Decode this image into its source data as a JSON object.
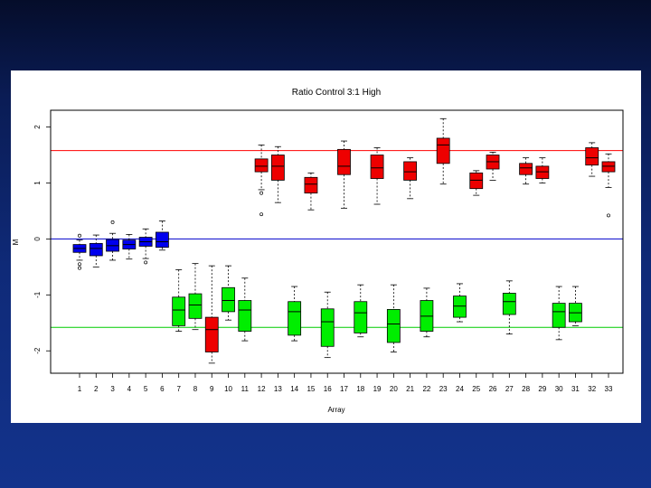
{
  "slide": {
    "background_top": "#050d2a",
    "background_bottom": "#13338c"
  },
  "chart_data": {
    "type": "boxplot",
    "title": "Ratio Control 3:1 High",
    "xlabel": "Array",
    "ylabel": "M",
    "ylim": [
      -2.4,
      2.3
    ],
    "yticks": [
      -2,
      -1,
      0,
      1,
      2
    ],
    "categories": [
      "1",
      "2",
      "3",
      "4",
      "5",
      "6",
      "7",
      "8",
      "9",
      "10",
      "11",
      "12",
      "13",
      "14",
      "15",
      "16",
      "17",
      "18",
      "19",
      "20",
      "21",
      "22",
      "23",
      "24",
      "25",
      "26",
      "27",
      "28",
      "29",
      "30",
      "31",
      "32",
      "33"
    ],
    "reference_lines": [
      {
        "y": 1.58,
        "color": "#ff0000"
      },
      {
        "y": 0,
        "color": "#0000cc"
      },
      {
        "y": -1.58,
        "color": "#00cc00"
      }
    ],
    "colors": {
      "blue": "#0000ee",
      "red": "#ee0000",
      "green": "#00ee00"
    },
    "boxes": [
      {
        "array": "1",
        "color": "blue",
        "low": -0.38,
        "q1": -0.24,
        "median": -0.17,
        "q3": -0.1,
        "high": -0.02,
        "outliers": [
          -0.45,
          -0.52,
          0.06
        ]
      },
      {
        "array": "2",
        "color": "blue",
        "low": -0.5,
        "q1": -0.3,
        "median": -0.17,
        "q3": -0.08,
        "high": 0.07,
        "outliers": []
      },
      {
        "array": "3",
        "color": "blue",
        "low": -0.38,
        "q1": -0.22,
        "median": -0.12,
        "q3": -0.01,
        "high": 0.1,
        "outliers": [
          0.3
        ]
      },
      {
        "array": "4",
        "color": "blue",
        "low": -0.36,
        "q1": -0.18,
        "median": -0.1,
        "q3": -0.02,
        "high": 0.08,
        "outliers": []
      },
      {
        "array": "5",
        "color": "blue",
        "low": -0.35,
        "q1": -0.13,
        "median": -0.05,
        "q3": 0.03,
        "high": 0.18,
        "outliers": [
          -0.42
        ]
      },
      {
        "array": "6",
        "color": "blue",
        "low": -0.2,
        "q1": -0.15,
        "median": -0.05,
        "q3": 0.12,
        "high": 0.32,
        "outliers": []
      },
      {
        "array": "7",
        "color": "green",
        "low": -1.65,
        "q1": -1.55,
        "median": -1.27,
        "q3": -1.04,
        "high": -0.55,
        "outliers": []
      },
      {
        "array": "8",
        "color": "green",
        "low": -1.62,
        "q1": -1.42,
        "median": -1.18,
        "q3": -0.98,
        "high": -0.44,
        "outliers": []
      },
      {
        "array": "9",
        "color": "red",
        "low": -2.22,
        "q1": -2.02,
        "median": -1.62,
        "q3": -1.4,
        "high": -0.48,
        "outliers": []
      },
      {
        "array": "10",
        "color": "green",
        "low": -1.45,
        "q1": -1.3,
        "median": -1.1,
        "q3": -0.87,
        "high": -0.48,
        "outliers": []
      },
      {
        "array": "11",
        "color": "green",
        "low": -1.82,
        "q1": -1.65,
        "median": -1.27,
        "q3": -1.1,
        "high": -0.7,
        "outliers": []
      },
      {
        "array": "12",
        "color": "red",
        "low": 0.88,
        "q1": 1.2,
        "median": 1.3,
        "q3": 1.43,
        "high": 1.68,
        "outliers": [
          0.82,
          0.44
        ]
      },
      {
        "array": "13",
        "color": "red",
        "low": 0.65,
        "q1": 1.05,
        "median": 1.3,
        "q3": 1.5,
        "high": 1.65,
        "outliers": []
      },
      {
        "array": "14",
        "color": "green",
        "low": -1.82,
        "q1": -1.72,
        "median": -1.3,
        "q3": -1.12,
        "high": -0.85,
        "outliers": []
      },
      {
        "array": "15",
        "color": "red",
        "low": 0.52,
        "q1": 0.82,
        "median": 0.98,
        "q3": 1.1,
        "high": 1.18,
        "outliers": []
      },
      {
        "array": "16",
        "color": "green",
        "low": -2.12,
        "q1": -1.92,
        "median": -1.48,
        "q3": -1.25,
        "high": -0.95,
        "outliers": []
      },
      {
        "array": "17",
        "color": "red",
        "low": 0.55,
        "q1": 1.15,
        "median": 1.3,
        "q3": 1.6,
        "high": 1.75,
        "outliers": []
      },
      {
        "array": "18",
        "color": "green",
        "low": -1.75,
        "q1": -1.68,
        "median": -1.32,
        "q3": -1.12,
        "high": -0.82,
        "outliers": []
      },
      {
        "array": "19",
        "color": "red",
        "low": 0.62,
        "q1": 1.08,
        "median": 1.27,
        "q3": 1.5,
        "high": 1.63,
        "outliers": []
      },
      {
        "array": "20",
        "color": "green",
        "low": -2.02,
        "q1": -1.85,
        "median": -1.52,
        "q3": -1.26,
        "high": -0.82,
        "outliers": []
      },
      {
        "array": "21",
        "color": "red",
        "low": 0.72,
        "q1": 1.05,
        "median": 1.2,
        "q3": 1.38,
        "high": 1.45,
        "outliers": []
      },
      {
        "array": "22",
        "color": "green",
        "low": -1.75,
        "q1": -1.65,
        "median": -1.38,
        "q3": -1.1,
        "high": -0.88,
        "outliers": []
      },
      {
        "array": "23",
        "color": "red",
        "low": 0.98,
        "q1": 1.35,
        "median": 1.68,
        "q3": 1.8,
        "high": 2.15,
        "outliers": []
      },
      {
        "array": "24",
        "color": "green",
        "low": -1.48,
        "q1": -1.4,
        "median": -1.2,
        "q3": -1.02,
        "high": -0.8,
        "outliers": []
      },
      {
        "array": "25",
        "color": "red",
        "low": 0.78,
        "q1": 0.9,
        "median": 1.05,
        "q3": 1.18,
        "high": 1.22,
        "outliers": []
      },
      {
        "array": "26",
        "color": "red",
        "low": 1.05,
        "q1": 1.25,
        "median": 1.38,
        "q3": 1.5,
        "high": 1.55,
        "outliers": []
      },
      {
        "array": "27",
        "color": "green",
        "low": -1.7,
        "q1": -1.35,
        "median": -1.12,
        "q3": -0.97,
        "high": -0.75,
        "outliers": []
      },
      {
        "array": "28",
        "color": "red",
        "low": 0.98,
        "q1": 1.15,
        "median": 1.27,
        "q3": 1.35,
        "high": 1.45,
        "outliers": []
      },
      {
        "array": "29",
        "color": "red",
        "low": 1.0,
        "q1": 1.08,
        "median": 1.2,
        "q3": 1.3,
        "high": 1.45,
        "outliers": []
      },
      {
        "array": "30",
        "color": "green",
        "low": -1.8,
        "q1": -1.58,
        "median": -1.3,
        "q3": -1.15,
        "high": -0.85,
        "outliers": []
      },
      {
        "array": "31",
        "color": "green",
        "low": -1.55,
        "q1": -1.48,
        "median": -1.32,
        "q3": -1.15,
        "high": -0.85,
        "outliers": []
      },
      {
        "array": "32",
        "color": "red",
        "low": 1.12,
        "q1": 1.32,
        "median": 1.45,
        "q3": 1.63,
        "high": 1.72,
        "outliers": []
      },
      {
        "array": "33",
        "color": "red",
        "low": 0.92,
        "q1": 1.2,
        "median": 1.3,
        "q3": 1.38,
        "high": 1.52,
        "outliers": [
          0.42
        ]
      }
    ]
  }
}
